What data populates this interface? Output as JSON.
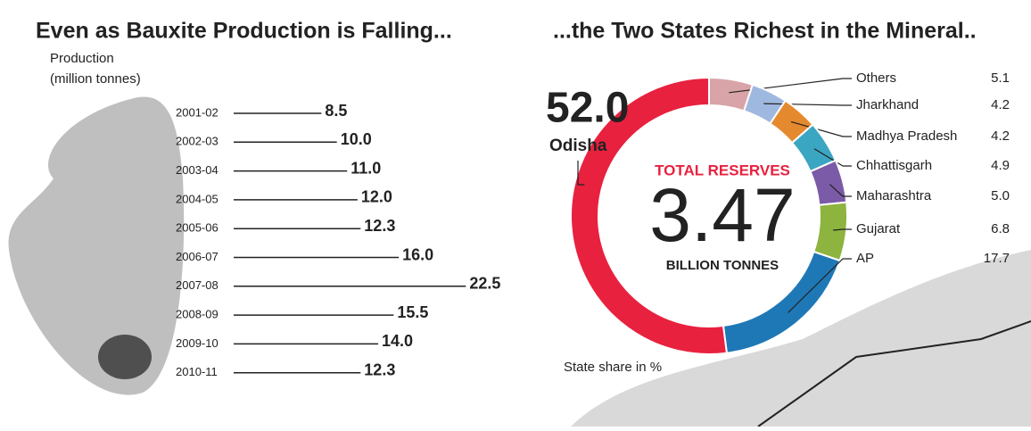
{
  "chart_data": [
    {
      "type": "bar",
      "orientation": "horizontal",
      "title": "Even as Bauxite Production is Falling...",
      "axis_label": "Production",
      "unit_label": "(million tonnes)",
      "categories": [
        "2001-02",
        "2002-03",
        "2003-04",
        "2004-05",
        "2005-06",
        "2006-07",
        "2007-08",
        "2008-09",
        "2009-10",
        "2010-11"
      ],
      "values": [
        8.5,
        10,
        11,
        12,
        12.3,
        16,
        22.5,
        15.5,
        14,
        12.3
      ],
      "value_labels": [
        "8.5",
        "10.0",
        "11.0",
        "12.0",
        "12.3",
        "16.0",
        "22.5",
        "15.5",
        "14.0",
        "12.3"
      ],
      "color": "#222222"
    },
    {
      "type": "donut",
      "title": "...the Two States Richest in the Mineral..",
      "center_title": "TOTAL RESERVES",
      "total": 3.47,
      "center_unit": "BILLION TONNES",
      "note": "State share in %",
      "categories": [
        "Others",
        "Jharkhand",
        "Madhya Pradesh",
        "Chhattisgarh",
        "Maharashtra",
        "Gujarat",
        "AP",
        "Odisha"
      ],
      "values": [
        5.1,
        4.2,
        4.2,
        4.9,
        5.0,
        6.8,
        17.7,
        52.0
      ],
      "value_labels": [
        "5.1",
        "4.2",
        "4.2",
        "4.9",
        "5.0",
        "6.8",
        "17.7",
        "52.0"
      ],
      "colors": [
        "#d8a4a8",
        "#9fb8df",
        "#e5892e",
        "#3ba6c1",
        "#7b5aa7",
        "#8db43f",
        "#1f78b6",
        "#e8213f"
      ]
    }
  ]
}
